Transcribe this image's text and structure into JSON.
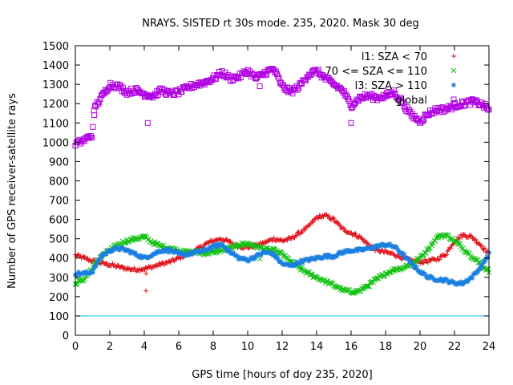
{
  "chart_data": {
    "type": "scatter",
    "title": "NRAYS. SISTED rt 30s mode. 235, 2020. Mask 30 deg",
    "xlabel": "GPS time [hours of doy 235, 2020]",
    "ylabel": "Number of GPS receiver-satellite rays",
    "xlim": [
      0,
      24
    ],
    "ylim": [
      0,
      1500
    ],
    "xticks": [
      0,
      2,
      4,
      6,
      8,
      10,
      12,
      14,
      16,
      18,
      20,
      22,
      24
    ],
    "yticks": [
      0,
      100,
      200,
      300,
      400,
      500,
      600,
      700,
      800,
      900,
      1000,
      1100,
      1200,
      1300,
      1400,
      1500
    ],
    "threshold_line": {
      "y": 100,
      "color": "#00bfd8"
    },
    "legend_position": "top-right",
    "series": [
      {
        "name": "l1: SZA < 70",
        "marker": "plus",
        "color": "#e0101a",
        "x": [
          0,
          0.5,
          1,
          1.5,
          2,
          2.5,
          3,
          3.5,
          4,
          4.5,
          5,
          5.5,
          6,
          6.5,
          7,
          7.5,
          8,
          8.5,
          9,
          9.5,
          10,
          10.5,
          11,
          11.5,
          12,
          12.5,
          13,
          13.5,
          14,
          14.5,
          15,
          15.5,
          16,
          16.5,
          17,
          17.5,
          18,
          18.5,
          19,
          19.5,
          20,
          20.5,
          21,
          21.5,
          22,
          22.5,
          23,
          23.5,
          24
        ],
        "y": [
          415,
          400,
          385,
          375,
          365,
          355,
          345,
          340,
          345,
          355,
          370,
          380,
          400,
          420,
          440,
          470,
          490,
          500,
          480,
          460,
          455,
          465,
          480,
          500,
          490,
          500,
          530,
          560,
          610,
          620,
          600,
          550,
          530,
          510,
          470,
          440,
          430,
          420,
          400,
          385,
          380,
          385,
          395,
          420,
          490,
          520,
          510,
          470,
          420
        ],
        "outliers": [
          {
            "x": 4.1,
            "y": 230
          },
          {
            "x": 4.1,
            "y": 320
          }
        ]
      },
      {
        "name": "70 <= SZA <= 110",
        "marker": "cross",
        "color": "#10c010",
        "x": [
          0,
          0.5,
          1,
          1.5,
          2,
          2.5,
          3,
          3.5,
          4,
          4.5,
          5,
          5.5,
          6,
          6.5,
          7,
          7.5,
          8,
          8.5,
          9,
          9.5,
          10,
          10.5,
          11,
          11.5,
          12,
          12.5,
          13,
          13.5,
          14,
          14.5,
          15,
          15.5,
          16,
          16.5,
          17,
          17.5,
          18,
          18.5,
          19,
          19.5,
          20,
          20.5,
          21,
          21.5,
          22,
          22.5,
          23,
          23.5,
          24
        ],
        "y": [
          270,
          290,
          350,
          410,
          440,
          470,
          490,
          500,
          510,
          480,
          460,
          450,
          440,
          430,
          430,
          425,
          430,
          440,
          450,
          470,
          475,
          460,
          445,
          440,
          420,
          380,
          350,
          320,
          300,
          280,
          260,
          235,
          225,
          230,
          260,
          290,
          320,
          340,
          350,
          370,
          400,
          450,
          510,
          520,
          490,
          450,
          410,
          370,
          330
        ],
        "outliers": [
          {
            "x": 10.7,
            "y": 395
          }
        ]
      },
      {
        "name": "l3: SZA > 110",
        "marker": "star",
        "color": "#1a7fe0",
        "x": [
          0,
          0.5,
          1,
          1.5,
          2,
          2.5,
          3,
          3.5,
          4,
          4.5,
          5,
          5.5,
          6,
          6.5,
          7,
          7.5,
          8,
          8.5,
          9,
          9.5,
          10,
          10.5,
          11,
          11.5,
          12,
          12.5,
          13,
          13.5,
          14,
          14.5,
          15,
          15.5,
          16,
          16.5,
          17,
          17.5,
          18,
          18.5,
          19,
          19.5,
          20,
          20.5,
          21,
          21.5,
          22,
          22.5,
          23,
          23.5,
          24
        ],
        "y": [
          320,
          320,
          330,
          410,
          440,
          450,
          440,
          420,
          400,
          420,
          440,
          440,
          420,
          420,
          430,
          440,
          460,
          470,
          430,
          400,
          390,
          410,
          430,
          420,
          370,
          360,
          380,
          390,
          400,
          410,
          410,
          430,
          440,
          440,
          450,
          460,
          470,
          460,
          420,
          370,
          330,
          300,
          290,
          285,
          270,
          270,
          300,
          350,
          420
        ],
        "outliers": []
      },
      {
        "name": "global",
        "marker": "square",
        "color": "#b000e0",
        "x": [
          0,
          0.5,
          1,
          1.1,
          1.5,
          2,
          2.5,
          3,
          3.5,
          4,
          4.5,
          5,
          5.5,
          6,
          6.5,
          7,
          7.5,
          8,
          8.5,
          9,
          9.5,
          10,
          10.5,
          11,
          11.5,
          12,
          12.5,
          13,
          13.5,
          14,
          14.5,
          15,
          15.5,
          16,
          16.5,
          17,
          17.5,
          18,
          18.5,
          19,
          19.5,
          20,
          20.5,
          21,
          21.5,
          22,
          22.5,
          23,
          23.5,
          24
        ],
        "y": [
          990,
          1010,
          1040,
          1180,
          1230,
          1300,
          1290,
          1260,
          1270,
          1250,
          1240,
          1270,
          1250,
          1260,
          1280,
          1300,
          1310,
          1330,
          1360,
          1330,
          1340,
          1370,
          1330,
          1360,
          1380,
          1290,
          1260,
          1290,
          1350,
          1370,
          1330,
          1300,
          1270,
          1190,
          1230,
          1240,
          1230,
          1240,
          1260,
          1200,
          1140,
          1110,
          1150,
          1170,
          1170,
          1190,
          1200,
          1210,
          1200,
          1170
        ],
        "outliers": [
          {
            "x": 1.1,
            "y": 1140
          },
          {
            "x": 4.2,
            "y": 1100
          },
          {
            "x": 10.7,
            "y": 1290
          },
          {
            "x": 16.0,
            "y": 1100
          }
        ]
      }
    ]
  }
}
